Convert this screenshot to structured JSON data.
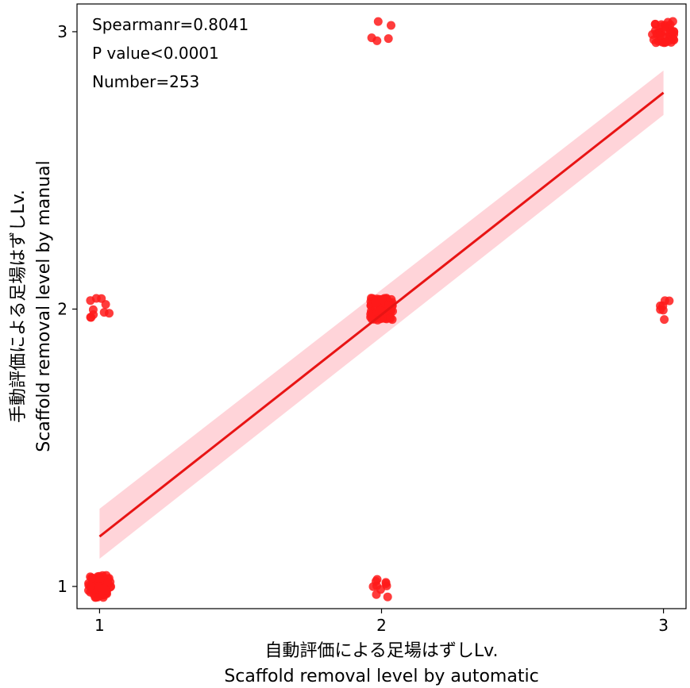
{
  "chart_data": {
    "type": "scatter",
    "xlabel": [
      "自動評価による足場はずしLv.",
      "Scaffold removal level by automatic"
    ],
    "ylabel": [
      "手動評価による足場はずしLv.",
      "Scaffold removal level by manual"
    ],
    "xlim": [
      0.92,
      3.08
    ],
    "ylim": [
      0.92,
      3.1
    ],
    "xticks": [
      1,
      2,
      3
    ],
    "yticks": [
      1,
      2,
      3
    ],
    "grid": false,
    "annotations": [
      "Spearmanr=0.8041",
      "P value<0.0001",
      "Number=253"
    ],
    "colors": {
      "points": "#ff1a1a",
      "line": "#e81414",
      "ci_band": "#ffc9cf"
    },
    "regression": {
      "x": [
        1,
        3
      ],
      "y": [
        1.18,
        2.78
      ],
      "ci_lower": [
        1.1,
        2.7
      ],
      "ci_upper": [
        1.28,
        2.86
      ]
    },
    "clusters": [
      {
        "x": 1,
        "y": 1,
        "count": 80
      },
      {
        "x": 1,
        "y": 2,
        "count": 10
      },
      {
        "x": 2,
        "y": 1,
        "count": 10
      },
      {
        "x": 2,
        "y": 2,
        "count": 100
      },
      {
        "x": 2,
        "y": 3,
        "count": 5
      },
      {
        "x": 3,
        "y": 2,
        "count": 7
      },
      {
        "x": 3,
        "y": 3,
        "count": 41
      }
    ]
  }
}
